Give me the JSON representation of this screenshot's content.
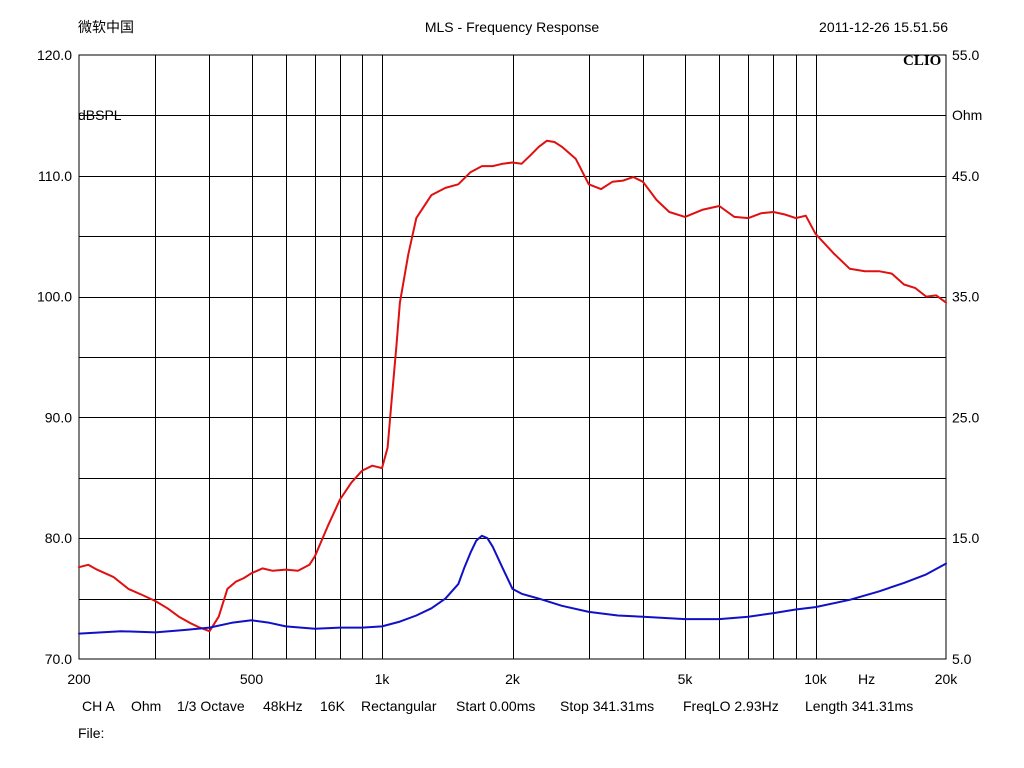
{
  "header": {
    "left": "微软中国",
    "title": "MLS - Frequency Response",
    "timestamp": "2011-12-26 15.51.56"
  },
  "brand": "CLIO",
  "footer": {
    "channel": "CH A",
    "unit": "Ohm",
    "smoothing": "1/3 Octave",
    "sample_rate": "48kHz",
    "size": "16K",
    "window": "Rectangular",
    "start": "Start 0.00ms",
    "stop": "Stop 341.31ms",
    "freqlo": "FreqLO 2.93Hz",
    "length": "Length 341.31ms",
    "file_label": "File:"
  },
  "colors": {
    "spl_series": "#e01010",
    "impedance_series": "#1010c8",
    "grid": "#000000",
    "background": "#ffffff"
  },
  "chart_data": {
    "type": "line",
    "x_scale": "log",
    "xlim": [
      200,
      20000
    ],
    "x_ticks": [
      {
        "value": 200,
        "label": "200"
      },
      {
        "value": 500,
        "label": "500"
      },
      {
        "value": 1000,
        "label": "1k"
      },
      {
        "value": 2000,
        "label": "2k"
      },
      {
        "value": 5000,
        "label": "5k"
      },
      {
        "value": 10000,
        "label": "10k"
      },
      {
        "value": 20000,
        "label": "20k"
      }
    ],
    "x_unit_label": "Hz",
    "x_grid": [
      300,
      400,
      500,
      600,
      700,
      800,
      900,
      1000,
      2000,
      3000,
      4000,
      5000,
      6000,
      7000,
      8000,
      9000,
      10000
    ],
    "y_left": {
      "label": "dBSPL",
      "range": [
        70,
        120
      ],
      "ticks": [
        {
          "value": 120,
          "label": "120.0"
        },
        {
          "value": 110,
          "label": "110.0"
        },
        {
          "value": 100,
          "label": "100.0"
        },
        {
          "value": 90,
          "label": "90.0"
        },
        {
          "value": 80,
          "label": "80.0"
        },
        {
          "value": 70,
          "label": "70.0"
        }
      ]
    },
    "y_right": {
      "label": "Ohm",
      "range": [
        5,
        55
      ],
      "ticks": [
        {
          "value": 55,
          "label": "55.0"
        },
        {
          "value": 45,
          "label": "45.0"
        },
        {
          "value": 35,
          "label": "35.0"
        },
        {
          "value": 25,
          "label": "25.0"
        },
        {
          "value": 15,
          "label": "15.0"
        },
        {
          "value": 5,
          "label": "5.0"
        }
      ]
    },
    "y_grid_step": 5,
    "grid": true,
    "series": [
      {
        "axis": "left",
        "color": "#e01010",
        "x": [
          200,
          210,
          220,
          240,
          260,
          280,
          300,
          320,
          340,
          360,
          380,
          400,
          420,
          440,
          460,
          480,
          500,
          530,
          560,
          600,
          640,
          680,
          700,
          750,
          800,
          850,
          900,
          950,
          1000,
          1030,
          1050,
          1080,
          1100,
          1150,
          1200,
          1300,
          1400,
          1500,
          1600,
          1700,
          1800,
          1900,
          2000,
          2100,
          2200,
          2300,
          2400,
          2500,
          2600,
          2800,
          3000,
          3200,
          3400,
          3600,
          3800,
          4000,
          4300,
          4600,
          5000,
          5500,
          6000,
          6500,
          7000,
          7500,
          8000,
          8500,
          9000,
          9500,
          10000,
          11000,
          12000,
          13000,
          14000,
          15000,
          16000,
          17000,
          18000,
          19000,
          20000
        ],
        "y": [
          77.6,
          77.8,
          77.4,
          76.8,
          75.8,
          75.3,
          74.8,
          74.2,
          73.5,
          73.0,
          72.6,
          72.3,
          73.5,
          75.8,
          76.4,
          76.7,
          77.1,
          77.5,
          77.3,
          77.4,
          77.3,
          77.8,
          78.5,
          81.0,
          83.2,
          84.6,
          85.6,
          86.0,
          85.8,
          87.5,
          91.0,
          96.0,
          99.5,
          103.5,
          106.5,
          108.4,
          109.0,
          109.3,
          110.3,
          110.8,
          110.8,
          111.0,
          111.1,
          111.0,
          111.7,
          112.4,
          112.9,
          112.8,
          112.4,
          111.4,
          109.3,
          108.9,
          109.5,
          109.6,
          109.9,
          109.5,
          108.0,
          107.0,
          106.6,
          107.2,
          107.5,
          106.6,
          106.5,
          106.9,
          107.0,
          106.8,
          106.5,
          106.7,
          105.2,
          103.6,
          102.3,
          102.1,
          102.1,
          101.9,
          101.0,
          100.7,
          100.0,
          100.1,
          99.5
        ]
      },
      {
        "axis": "right",
        "color": "#1010c8",
        "x": [
          200,
          250,
          300,
          350,
          400,
          450,
          500,
          550,
          600,
          700,
          800,
          900,
          1000,
          1100,
          1200,
          1300,
          1400,
          1500,
          1550,
          1600,
          1650,
          1700,
          1750,
          1800,
          1900,
          2000,
          2100,
          2300,
          2600,
          3000,
          3500,
          4000,
          5000,
          6000,
          7000,
          8000,
          9000,
          10000,
          12000,
          14000,
          16000,
          18000,
          20000
        ],
        "y": [
          7.1,
          7.3,
          7.2,
          7.4,
          7.6,
          8.0,
          8.2,
          8.0,
          7.7,
          7.5,
          7.6,
          7.6,
          7.7,
          8.1,
          8.6,
          9.2,
          10.0,
          11.2,
          12.6,
          13.8,
          14.8,
          15.2,
          15.0,
          14.3,
          12.5,
          10.8,
          10.4,
          10.0,
          9.4,
          8.9,
          8.6,
          8.5,
          8.3,
          8.3,
          8.5,
          8.8,
          9.1,
          9.3,
          9.9,
          10.6,
          11.3,
          12.0,
          12.9
        ]
      }
    ]
  }
}
